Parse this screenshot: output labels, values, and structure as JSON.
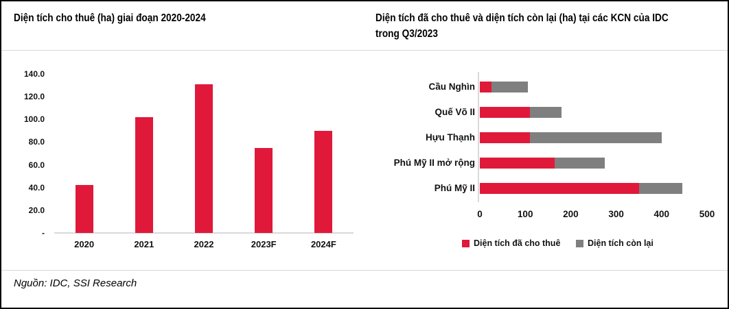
{
  "header": {
    "left": {
      "line1": "Diện tích cho thuê (ha) giai đoạn 2020-2024"
    },
    "right": {
      "line1": "Diện tích đã cho thuê và diện tích còn lại (ha) tại các KCN của IDC",
      "line2": "trong Q3/2023"
    }
  },
  "footer": {
    "source": "Nguồn: IDC, SSI Research"
  },
  "colors": {
    "red": "#E0193A",
    "gray": "#7F7F7F",
    "axis": "#d9d9d9"
  },
  "chart_data": [
    {
      "type": "bar",
      "title": "Diện tích cho thuê (ha) giai đoạn 2020-2024",
      "categories": [
        "2020",
        "2021",
        "2022",
        "2023F",
        "2024F"
      ],
      "values": [
        42,
        102,
        131,
        75,
        90
      ],
      "xlabel": "",
      "ylabel": "",
      "ylim": [
        0,
        140
      ],
      "ytick_step": 20,
      "ytick_labels": [
        "-",
        "20.0",
        "40.0",
        "60.0",
        "80.0",
        "100.0",
        "120.0",
        "140.0"
      ],
      "bar_color": "#E0193A",
      "grid": false,
      "legend_position": "none"
    },
    {
      "type": "bar-horizontal-stacked",
      "title": "Diện tích đã cho thuê và diện tích còn lại (ha) tại các KCN của IDC trong Q3/2023",
      "categories": [
        "Cầu Nghìn",
        "Quế Võ  II",
        "Hựu Thạnh",
        "Phú Mỹ II mở rộng",
        "Phú Mỹ II"
      ],
      "series": [
        {
          "name": "Diện tích đã cho thuê",
          "color": "#E0193A",
          "values": [
            25,
            110,
            110,
            165,
            350
          ]
        },
        {
          "name": "Diện tích còn lại",
          "color": "#7F7F7F",
          "values": [
            80,
            70,
            290,
            110,
            95
          ]
        }
      ],
      "xlim": [
        0,
        500
      ],
      "xticks": [
        0,
        100,
        200,
        300,
        400,
        500
      ],
      "grid": false,
      "legend_position": "bottom"
    }
  ]
}
